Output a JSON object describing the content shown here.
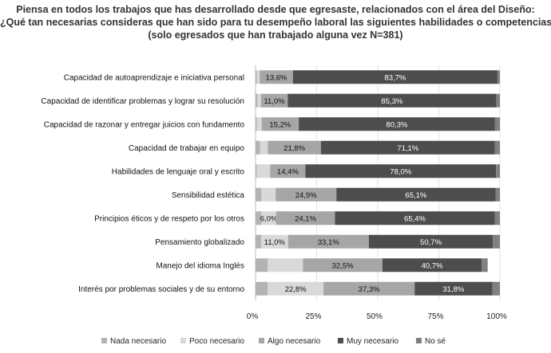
{
  "chart_data": {
    "type": "bar",
    "orientation": "horizontal",
    "stacked": true,
    "title_lines": [
      "Piensa en todos los trabajos que has desarrollado desde que egresaste, relacionados con el área del Diseño:",
      "¿Qué tan necesarias consideras que han sido para tu desempeño laboral las siguientes habilidades o competencias?",
      "(solo egresados que han trabajado alguna vez N=381)"
    ],
    "categories": [
      "Capacidad de autoaprendizaje e iniciativa personal",
      "Capacidad de identificar problemas y lograr su resolución",
      "Capacidad de razonar y entregar juicios con fundamento",
      "Capacidad de trabajar en equipo",
      "Habilidades de lenguaje oral y escrito",
      "Sensibilidad estética",
      "Principios éticos y de respeto por los otros",
      "Pensamiento globalizado",
      "Manejo del idioma Inglés",
      "Interés por problemas sociales y de su entorno"
    ],
    "series": [
      {
        "name": "Nada necesario",
        "color": "#b3b3b3",
        "values": [
          0.5,
          0.8,
          0.5,
          1.8,
          0.5,
          2.4,
          2.4,
          2.3,
          5.0,
          5.0
        ]
      },
      {
        "name": "Poco necesario",
        "color": "#d9d9d9",
        "values": [
          1.2,
          1.4,
          2.0,
          3.2,
          5.5,
          5.8,
          6.0,
          11.0,
          14.4,
          22.8
        ]
      },
      {
        "name": "Algo necesario",
        "color": "#a6a6a6",
        "values": [
          13.6,
          11.0,
          15.2,
          21.8,
          14.4,
          24.9,
          24.1,
          33.1,
          32.5,
          37.3
        ]
      },
      {
        "name": "Muy necesario",
        "color": "#4d4d4d",
        "values": [
          83.7,
          85.3,
          80.3,
          71.1,
          78.0,
          65.1,
          65.4,
          50.7,
          40.7,
          31.8
        ]
      },
      {
        "name": "No sé",
        "color": "#808080",
        "values": [
          1.0,
          1.5,
          2.0,
          2.1,
          1.6,
          1.8,
          2.1,
          2.9,
          2.4,
          3.1
        ]
      }
    ],
    "data_labels": [
      [
        null,
        null,
        "13,6%",
        "83,7%",
        null
      ],
      [
        null,
        null,
        "11,0%",
        "85,3%",
        null
      ],
      [
        null,
        null,
        "15,2%",
        "80,3%",
        null
      ],
      [
        null,
        null,
        "21,8%",
        "71,1%",
        null
      ],
      [
        null,
        null,
        "14,4%",
        "78,0%",
        null
      ],
      [
        null,
        null,
        "24,9%",
        "65,1%",
        null
      ],
      [
        null,
        "6,0%",
        "24,1%",
        "65,4%",
        null
      ],
      [
        null,
        "11,0%",
        "33,1%",
        "50,7%",
        null
      ],
      [
        null,
        null,
        "32,5%",
        "40,7%",
        null
      ],
      [
        null,
        "22,8%",
        "37,3%",
        "31,8%",
        null
      ]
    ],
    "xlim": [
      0,
      100
    ],
    "xticks": [
      "0%",
      "25%",
      "50%",
      "75%",
      "100%"
    ],
    "grid": true,
    "legend_position": "bottom"
  }
}
